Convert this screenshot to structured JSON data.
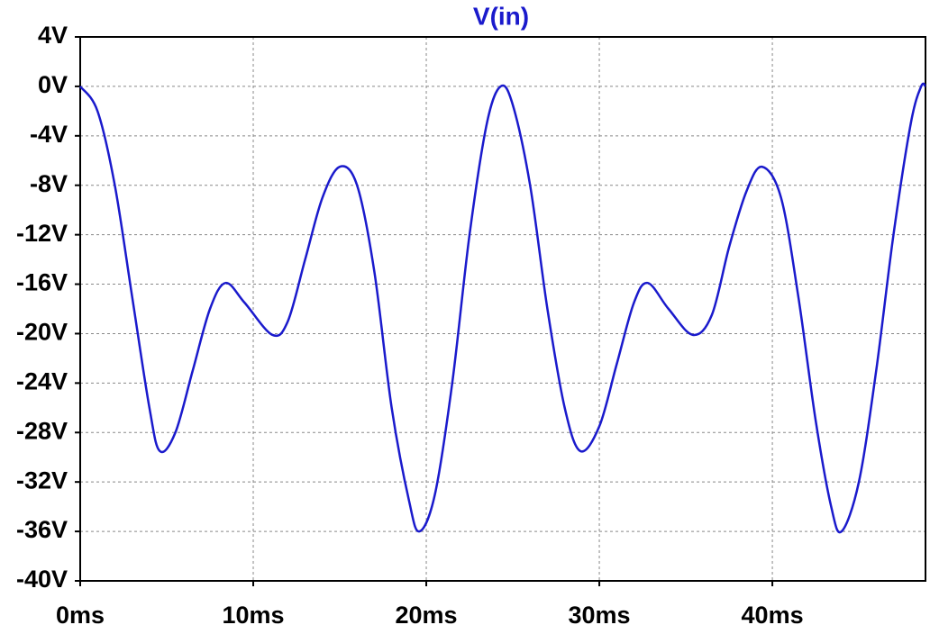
{
  "chart_data": {
    "type": "line",
    "title": "V(in)",
    "x": [
      0,
      1,
      2,
      3,
      4,
      4.6,
      5.5,
      6.5,
      7.5,
      8.4,
      9.5,
      11.1,
      12,
      13,
      14,
      15,
      16,
      17,
      18,
      19,
      19.6,
      20.5,
      21.5,
      22.5,
      23.5,
      24.3,
      25,
      26,
      27,
      28,
      28.9,
      30,
      31,
      32,
      32.8,
      34,
      35.4,
      36.5,
      37.5,
      38.5,
      39.4,
      40.5,
      41.5,
      42.5,
      43.4,
      44,
      45,
      46,
      47,
      48,
      48.6,
      48.85
    ],
    "series": [
      {
        "name": "V(in)",
        "color": "#1a1acc",
        "values": [
          0,
          -2,
          -8,
          -17,
          -26,
          -29.5,
          -28,
          -23,
          -18,
          -15.9,
          -17.5,
          -20.1,
          -19,
          -14,
          -9,
          -6.5,
          -8,
          -15,
          -26,
          -33.5,
          -36,
          -33,
          -24,
          -12,
          -3,
          0,
          -1.5,
          -8,
          -18,
          -26,
          -29.5,
          -27.5,
          -22.5,
          -17.5,
          -15.9,
          -18,
          -20.1,
          -18.5,
          -13,
          -8.5,
          -6.5,
          -9,
          -17,
          -27,
          -34,
          -36,
          -32,
          -23,
          -12,
          -3,
          0,
          0
        ]
      }
    ],
    "xlim": [
      0,
      48.85
    ],
    "xticks": [
      {
        "value": 0,
        "label": "0ms"
      },
      {
        "value": 10,
        "label": "10ms"
      },
      {
        "value": 20,
        "label": "20ms"
      },
      {
        "value": 30,
        "label": "30ms"
      },
      {
        "value": 40,
        "label": "40ms"
      }
    ],
    "ylim": [
      -40,
      4
    ],
    "yticks": [
      {
        "value": 4,
        "label": "4V"
      },
      {
        "value": 0,
        "label": "0V"
      },
      {
        "value": -4,
        "label": "-4V"
      },
      {
        "value": -8,
        "label": "-8V"
      },
      {
        "value": -12,
        "label": "-12V"
      },
      {
        "value": -16,
        "label": "-16V"
      },
      {
        "value": -20,
        "label": "-20V"
      },
      {
        "value": -24,
        "label": "-24V"
      },
      {
        "value": -28,
        "label": "-28V"
      },
      {
        "value": -32,
        "label": "-32V"
      },
      {
        "value": -36,
        "label": "-36V"
      },
      {
        "value": -40,
        "label": "-40V"
      }
    ],
    "grid": true
  }
}
